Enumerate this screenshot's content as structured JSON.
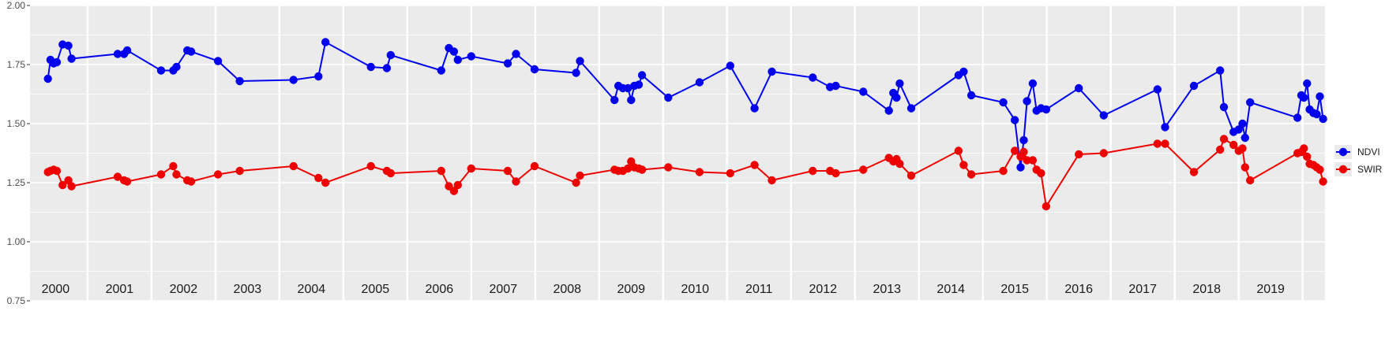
{
  "chart_data": {
    "type": "line",
    "title": "",
    "xlabel": "",
    "ylabel": "",
    "ylim": [
      0.75,
      2.0
    ],
    "yticks": [
      "0.75",
      "1.00",
      "1.25",
      "1.50",
      "1.75",
      "2.00"
    ],
    "xlim": [
      1999.6,
      2019.85
    ],
    "years": [
      "2000",
      "2001",
      "2002",
      "2003",
      "2004",
      "2005",
      "2006",
      "2007",
      "2008",
      "2009",
      "2010",
      "2011",
      "2012",
      "2013",
      "2014",
      "2015",
      "2016",
      "2017",
      "2018",
      "2019"
    ],
    "grid": true,
    "legend": "right",
    "colors": {
      "NDVI": "#0000ee",
      "SWIR": "#ee0000",
      "panel": "#ebebeb",
      "grid": "#ffffff"
    },
    "series": [
      {
        "name": "NDVI",
        "points": [
          [
            1999.88,
            1.69
          ],
          [
            1999.92,
            1.77
          ],
          [
            1999.97,
            1.755
          ],
          [
            2000.02,
            1.76
          ],
          [
            2000.11,
            1.835
          ],
          [
            2000.2,
            1.83
          ],
          [
            2000.25,
            1.775
          ],
          [
            2000.97,
            1.795
          ],
          [
            2001.07,
            1.795
          ],
          [
            2001.12,
            1.81
          ],
          [
            2001.65,
            1.725
          ],
          [
            2001.84,
            1.725
          ],
          [
            2001.89,
            1.74
          ],
          [
            2002.06,
            1.81
          ],
          [
            2002.12,
            1.805
          ],
          [
            2002.54,
            1.765
          ],
          [
            2002.88,
            1.68
          ],
          [
            2003.72,
            1.685
          ],
          [
            2004.11,
            1.7
          ],
          [
            2004.22,
            1.845
          ],
          [
            2004.93,
            1.74
          ],
          [
            2005.18,
            1.735
          ],
          [
            2005.24,
            1.79
          ],
          [
            2006.03,
            1.725
          ],
          [
            2006.15,
            1.82
          ],
          [
            2006.23,
            1.805
          ],
          [
            2006.29,
            1.77
          ],
          [
            2006.5,
            1.785
          ],
          [
            2007.07,
            1.755
          ],
          [
            2007.2,
            1.795
          ],
          [
            2007.49,
            1.73
          ],
          [
            2008.14,
            1.715
          ],
          [
            2008.2,
            1.765
          ],
          [
            2008.74,
            1.6
          ],
          [
            2008.8,
            1.66
          ],
          [
            2008.87,
            1.65
          ],
          [
            2008.95,
            1.65
          ],
          [
            2009.0,
            1.6
          ],
          [
            2009.05,
            1.66
          ],
          [
            2009.12,
            1.665
          ],
          [
            2009.17,
            1.705
          ],
          [
            2009.58,
            1.61
          ],
          [
            2010.07,
            1.675
          ],
          [
            2010.55,
            1.745
          ],
          [
            2010.93,
            1.565
          ],
          [
            2011.2,
            1.72
          ],
          [
            2011.84,
            1.695
          ],
          [
            2012.11,
            1.655
          ],
          [
            2012.2,
            1.66
          ],
          [
            2012.63,
            1.635
          ],
          [
            2013.03,
            1.555
          ],
          [
            2013.1,
            1.63
          ],
          [
            2013.15,
            1.61
          ],
          [
            2013.2,
            1.67
          ],
          [
            2013.38,
            1.565
          ],
          [
            2014.12,
            1.705
          ],
          [
            2014.2,
            1.72
          ],
          [
            2014.32,
            1.62
          ],
          [
            2014.82,
            1.59
          ],
          [
            2015.0,
            1.515
          ],
          [
            2015.09,
            1.315
          ],
          [
            2015.14,
            1.43
          ],
          [
            2015.19,
            1.595
          ],
          [
            2015.28,
            1.67
          ],
          [
            2015.34,
            1.555
          ],
          [
            2015.41,
            1.565
          ],
          [
            2015.49,
            1.56
          ],
          [
            2016.0,
            1.65
          ],
          [
            2016.39,
            1.535
          ],
          [
            2017.23,
            1.645
          ],
          [
            2017.35,
            1.485
          ],
          [
            2017.8,
            1.66
          ],
          [
            2018.21,
            1.725
          ],
          [
            2018.27,
            1.57
          ],
          [
            2018.42,
            1.465
          ],
          [
            2018.5,
            1.475
          ],
          [
            2018.56,
            1.5
          ],
          [
            2018.6,
            1.44
          ],
          [
            2018.68,
            1.59
          ],
          [
            2019.42,
            1.525
          ],
          [
            2019.48,
            1.62
          ],
          [
            2019.52,
            1.61
          ],
          [
            2019.57,
            1.67
          ],
          [
            2019.61,
            1.56
          ],
          [
            2019.67,
            1.545
          ],
          [
            2019.72,
            1.54
          ],
          [
            2019.77,
            1.615
          ],
          [
            2019.82,
            1.52
          ]
        ]
      },
      {
        "name": "SWIR",
        "points": [
          [
            1999.88,
            1.295
          ],
          [
            1999.92,
            1.3
          ],
          [
            1999.97,
            1.305
          ],
          [
            2000.02,
            1.3
          ],
          [
            2000.11,
            1.24
          ],
          [
            2000.2,
            1.26
          ],
          [
            2000.25,
            1.235
          ],
          [
            2000.97,
            1.275
          ],
          [
            2001.07,
            1.26
          ],
          [
            2001.12,
            1.255
          ],
          [
            2001.65,
            1.285
          ],
          [
            2001.84,
            1.32
          ],
          [
            2001.89,
            1.285
          ],
          [
            2002.06,
            1.26
          ],
          [
            2002.12,
            1.255
          ],
          [
            2002.54,
            1.285
          ],
          [
            2002.88,
            1.3
          ],
          [
            2003.72,
            1.32
          ],
          [
            2004.11,
            1.27
          ],
          [
            2004.22,
            1.25
          ],
          [
            2004.93,
            1.32
          ],
          [
            2005.18,
            1.3
          ],
          [
            2005.24,
            1.29
          ],
          [
            2006.03,
            1.3
          ],
          [
            2006.15,
            1.235
          ],
          [
            2006.23,
            1.215
          ],
          [
            2006.29,
            1.24
          ],
          [
            2006.5,
            1.31
          ],
          [
            2007.07,
            1.3
          ],
          [
            2007.2,
            1.255
          ],
          [
            2007.49,
            1.32
          ],
          [
            2008.14,
            1.25
          ],
          [
            2008.2,
            1.28
          ],
          [
            2008.74,
            1.305
          ],
          [
            2008.8,
            1.3
          ],
          [
            2008.87,
            1.3
          ],
          [
            2008.95,
            1.31
          ],
          [
            2009.0,
            1.34
          ],
          [
            2009.05,
            1.315
          ],
          [
            2009.12,
            1.31
          ],
          [
            2009.17,
            1.305
          ],
          [
            2009.58,
            1.315
          ],
          [
            2010.07,
            1.295
          ],
          [
            2010.55,
            1.29
          ],
          [
            2010.93,
            1.325
          ],
          [
            2011.2,
            1.26
          ],
          [
            2011.84,
            1.3
          ],
          [
            2012.11,
            1.3
          ],
          [
            2012.2,
            1.29
          ],
          [
            2012.63,
            1.305
          ],
          [
            2013.03,
            1.355
          ],
          [
            2013.1,
            1.34
          ],
          [
            2013.15,
            1.35
          ],
          [
            2013.2,
            1.33
          ],
          [
            2013.38,
            1.28
          ],
          [
            2014.12,
            1.385
          ],
          [
            2014.2,
            1.325
          ],
          [
            2014.32,
            1.285
          ],
          [
            2014.82,
            1.3
          ],
          [
            2015.0,
            1.385
          ],
          [
            2015.09,
            1.36
          ],
          [
            2015.14,
            1.38
          ],
          [
            2015.19,
            1.345
          ],
          [
            2015.28,
            1.345
          ],
          [
            2015.34,
            1.305
          ],
          [
            2015.41,
            1.29
          ],
          [
            2015.49,
            1.15
          ],
          [
            2016.0,
            1.37
          ],
          [
            2016.39,
            1.375
          ],
          [
            2017.23,
            1.415
          ],
          [
            2017.35,
            1.415
          ],
          [
            2017.8,
            1.295
          ],
          [
            2018.21,
            1.39
          ],
          [
            2018.27,
            1.435
          ],
          [
            2018.42,
            1.41
          ],
          [
            2018.5,
            1.385
          ],
          [
            2018.56,
            1.395
          ],
          [
            2018.6,
            1.315
          ],
          [
            2018.68,
            1.26
          ],
          [
            2019.42,
            1.375
          ],
          [
            2019.48,
            1.38
          ],
          [
            2019.52,
            1.395
          ],
          [
            2019.57,
            1.36
          ],
          [
            2019.61,
            1.33
          ],
          [
            2019.67,
            1.325
          ],
          [
            2019.72,
            1.315
          ],
          [
            2019.77,
            1.305
          ],
          [
            2019.82,
            1.255
          ]
        ]
      }
    ]
  }
}
